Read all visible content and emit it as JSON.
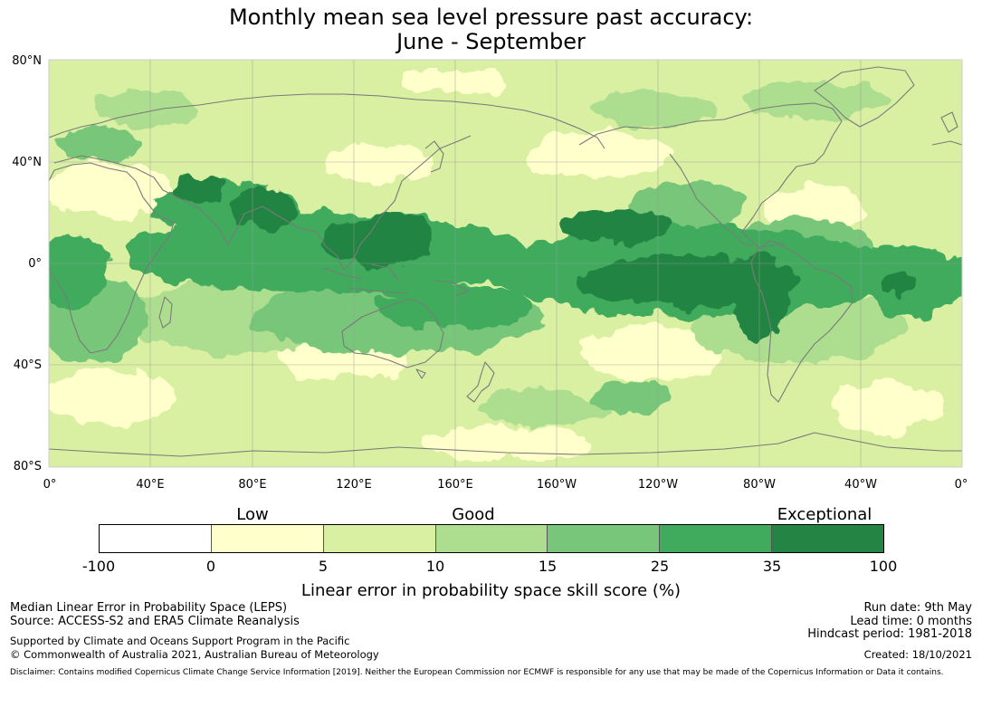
{
  "title_line1": "Monthly mean sea level pressure past accuracy:",
  "title_line2": "June - September",
  "lat_labels": [
    "80°N",
    "40°N",
    "0°",
    "40°S",
    "80°S"
  ],
  "lon_labels": [
    "0°",
    "40°E",
    "80°E",
    "120°E",
    "160°E",
    "160°W",
    "120°W",
    "80°W",
    "40°W",
    "0°"
  ],
  "legend": {
    "quality_labels": [
      "Low",
      "Good",
      "Exceptional"
    ],
    "ticks": [
      "-100",
      "0",
      "5",
      "10",
      "15",
      "25",
      "35",
      "100"
    ],
    "colors": [
      "#ffffff",
      "#ffffcc",
      "#d9f0a3",
      "#addd8e",
      "#78c679",
      "#41ab5d",
      "#238443"
    ],
    "title": "Linear error in probability space skill score (%)"
  },
  "footer": {
    "left_line1": "Median Linear Error in Probability Space (LEPS)",
    "left_line2": "Source: ACCESS-S2 and ERA5 Climate Reanalysis",
    "left_line3": "Supported by Climate and Oceans Support Program in the Pacific",
    "left_line4": "© Commonwealth of Australia 2021, Australian Bureau of Meteorology",
    "run_date": "Run date: 9th May",
    "lead_time": "Lead time: 0 months",
    "hindcast": "Hindcast period: 1981-2018",
    "created": "Created: 18/10/2021",
    "disclaimer": "Disclaimer: Contains modified Copernicus Climate Change Service Information [2019]. Neither the European Commission nor ECMWF is responsible for any use that may be made of the Copernicus Information or Data it contains."
  },
  "colors": {
    "coastline": "#7a7a7a",
    "gridline": "#9a9a9a"
  }
}
